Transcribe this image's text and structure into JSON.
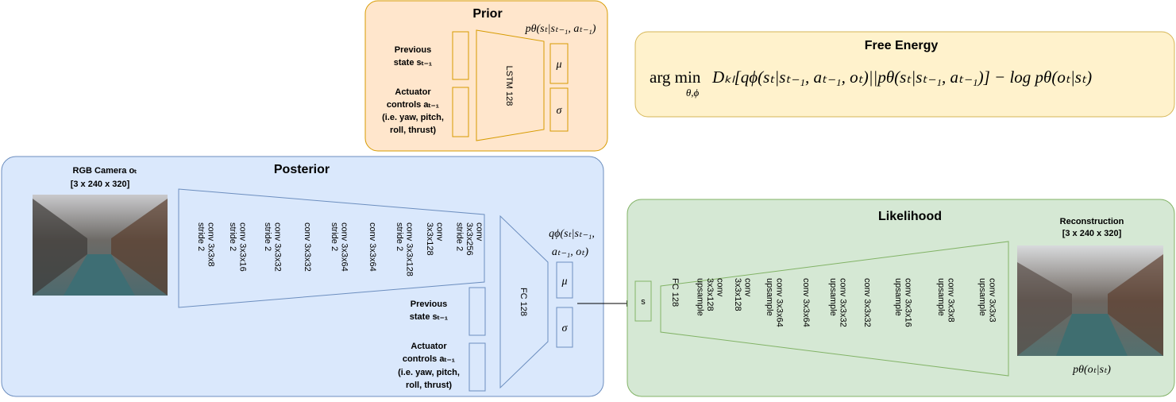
{
  "prior": {
    "title": "Prior",
    "distribution": "pθ(sₜ|sₜ₋₁, aₜ₋₁)",
    "previous_state": [
      "Previous",
      "state sₜ₋₁"
    ],
    "actuator": [
      "Actuator",
      "controls aₜ₋₁",
      "(i.e. yaw, pitch,",
      "roll, thrust)"
    ],
    "lstm": "LSTM 128",
    "mu": "μ",
    "sigma": "σ"
  },
  "free_energy": {
    "title": "Free Energy",
    "operator": "arg min",
    "subscript": "θ,ϕ",
    "expression": "Dₖₗ[qϕ(sₜ|sₜ₋₁, aₜ₋₁, oₜ)||pθ(sₜ|sₜ₋₁, aₜ₋₁)] − log pθ(oₜ|sₜ)"
  },
  "posterior": {
    "title": "Posterior",
    "camera": [
      "RGB Camera oₜ",
      "[3 x 240 x 320]"
    ],
    "encoder": [
      [
        "conv 3x3x8",
        "stride 2"
      ],
      [
        "conv 3x3x16",
        "stride 2"
      ],
      [
        "conv 3x3x32",
        "stride 2"
      ],
      [
        "conv 3x3x32"
      ],
      [
        "conv 3x3x64",
        "stride 2"
      ],
      [
        "conv 3x3x64"
      ],
      [
        "conv 3x3x128",
        "stride 2"
      ],
      [
        "conv",
        "3x3x128"
      ],
      [
        "conv",
        "3x3x256",
        "stride 2"
      ]
    ],
    "fc": "FC 128",
    "distribution": [
      "qϕ(sₜ|sₜ₋₁,",
      "aₜ₋₁, oₜ)"
    ],
    "mu": "μ",
    "sigma": "σ",
    "previous_state": [
      "Previous",
      "state sₜ₋₁"
    ],
    "actuator": [
      "Actuator",
      "controls aₜ₋₁",
      "(i.e. yaw, pitch,",
      "roll, thrust)"
    ]
  },
  "likelihood": {
    "title": "Likelihood",
    "state": "s",
    "decoder": [
      [
        "FC 128"
      ],
      [
        "conv",
        "3x3x128",
        "upsample"
      ],
      [
        "conv",
        "3x3x128"
      ],
      [
        "conv 3x3x64",
        "upsample"
      ],
      [
        "conv 3x3x64"
      ],
      [
        "conv 3x3x32",
        "upsample"
      ],
      [
        "conv 3x3x32"
      ],
      [
        "conv 3x3x16",
        "upsample"
      ],
      [
        "conv 3x3x8",
        "upsample"
      ],
      [
        "conv 3x3x3",
        "upsample"
      ]
    ],
    "reconstruction": [
      "Reconstruction",
      "[3 x 240 x 320]"
    ],
    "distribution": "pθ(oₜ|sₜ)"
  }
}
